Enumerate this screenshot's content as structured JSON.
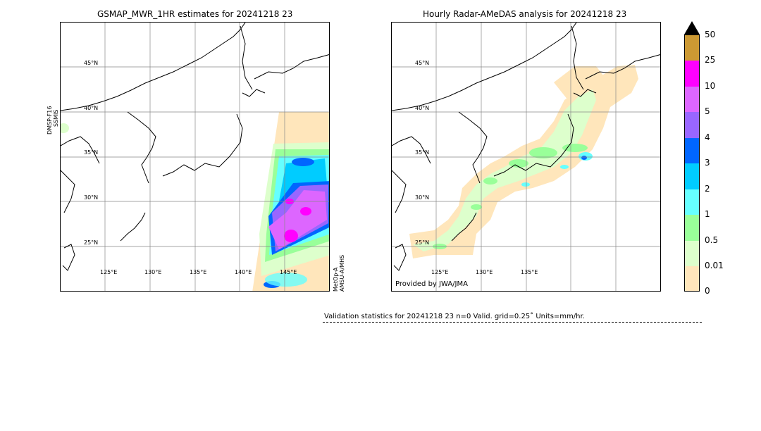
{
  "left_panel": {
    "title": "GSMAP_MWR_1HR estimates for 20241218 23",
    "lat_labels": [
      "45°N",
      "40°N",
      "35°N",
      "30°N",
      "25°N"
    ],
    "lon_labels": [
      "125°E",
      "130°E",
      "135°E",
      "140°E",
      "145°E"
    ],
    "left_sensor": [
      "DMSP-F16",
      "SSMIS"
    ],
    "right_sensor": [
      "MetOp-A",
      "AMSU-A/MHS"
    ]
  },
  "right_panel": {
    "title": "Hourly Radar-AMeDAS analysis for 20241218 23",
    "lat_labels": [
      "45°N",
      "40°N",
      "35°N",
      "30°N",
      "25°N"
    ],
    "lon_labels": [
      "125°E",
      "130°E",
      "135°E"
    ],
    "provider": "Provided by JWA/JMA"
  },
  "colorbar": {
    "ticks": [
      "50",
      "25",
      "10",
      "5",
      "4",
      "3",
      "2",
      "1",
      "0.5",
      "0.01",
      "0"
    ],
    "colors": [
      "#cc9933",
      "#ff00ff",
      "#dd66ff",
      "#9966ff",
      "#0066ff",
      "#00ccff",
      "#66ffff",
      "#99ff99",
      "#ddffcc",
      "#ffe6bb"
    ],
    "extend_color": "#000000"
  },
  "validation": {
    "text": "Validation statistics for 20241218 23  n=0 Valid. grid=0.25˚ Units=mm/hr."
  }
}
